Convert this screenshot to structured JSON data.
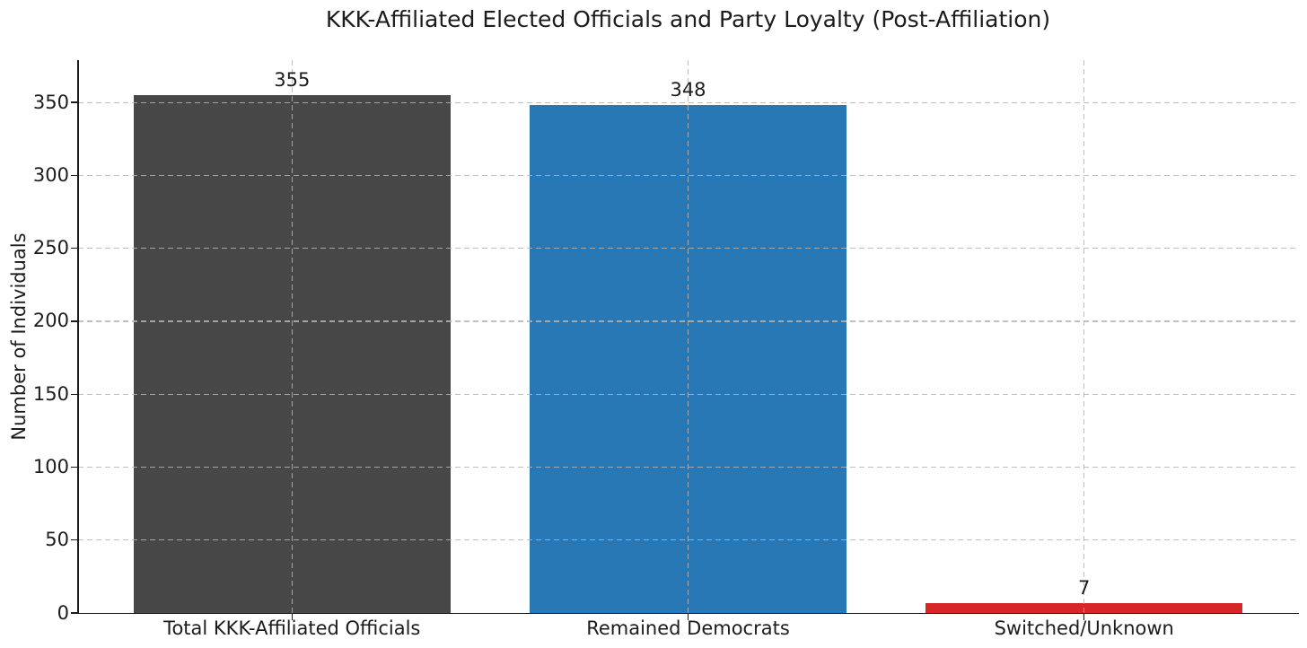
{
  "chart_data": {
    "type": "bar",
    "title": "KKK-Affiliated Elected Officials and Party Loyalty (Post-Affiliation)",
    "ylabel": "Number of Individuals",
    "xlabel": "",
    "categories": [
      "Total KKK-Affiliated Officials",
      "Remained Democrats",
      "Switched/Unknown"
    ],
    "values": [
      355,
      348,
      7
    ],
    "value_labels": [
      "355",
      "348",
      "7"
    ],
    "bar_colors": [
      "#474747",
      "#2878b5",
      "#d62728"
    ],
    "yticks": [
      0,
      50,
      100,
      150,
      200,
      250,
      300,
      350
    ],
    "ylim": [
      0,
      379
    ],
    "grid": "dashed horizontal and vertical gridlines, drawn above bars",
    "legend": "none",
    "style": {
      "grid_color": "#b4b4b4",
      "spine_color": "#1a1a1a",
      "text_color": "#1c1c1c",
      "background": "#ffffff"
    }
  }
}
